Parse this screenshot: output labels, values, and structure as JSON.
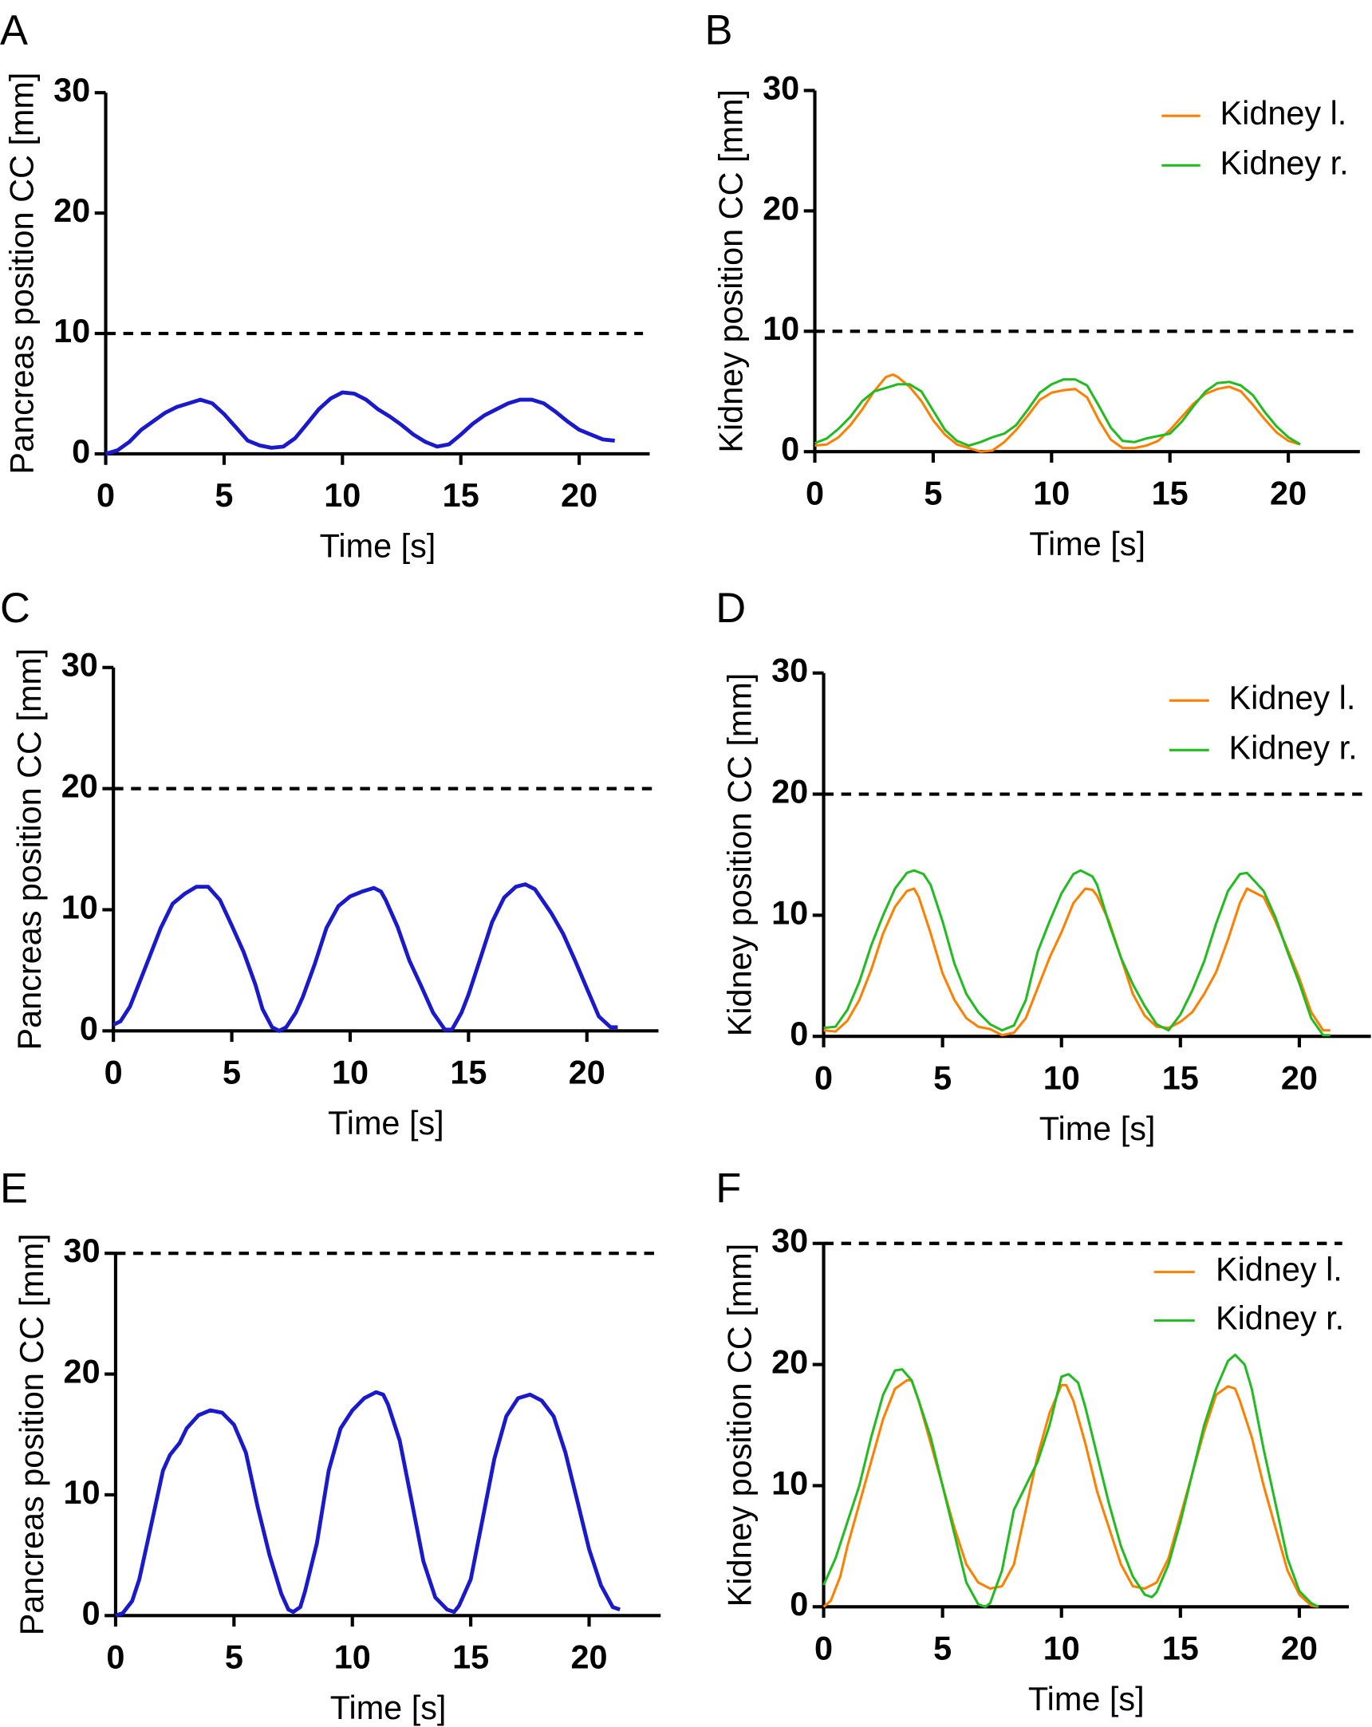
{
  "colors": {
    "pancreas": "#1a1acc",
    "kidney_l": "#ff8000",
    "kidney_r": "#22bb22",
    "threshold": "#000000"
  },
  "chart_data": [
    {
      "panel": "A",
      "type": "line",
      "xlabel": "Time [s]",
      "ylabel": "Pancreas position CC [mm]",
      "xlim": [
        0,
        23
      ],
      "ylim": [
        0,
        30
      ],
      "xticks": [
        "0",
        "5",
        "10",
        "15",
        "20"
      ],
      "yticks": [
        "0",
        "10",
        "20",
        "30"
      ],
      "threshold": 10,
      "legend": null,
      "series": [
        {
          "color": "pancreas",
          "x": [
            0,
            0.5,
            1,
            1.5,
            2,
            2.5,
            3,
            3.5,
            4,
            4.5,
            5,
            5.5,
            6,
            6.5,
            7,
            7.5,
            8,
            8.5,
            9,
            9.5,
            10,
            10.5,
            11,
            11.5,
            12,
            12.5,
            13,
            13.5,
            14,
            14.5,
            15,
            15.5,
            16,
            16.5,
            17,
            17.5,
            18,
            18.5,
            19,
            19.5,
            20,
            20.5,
            21,
            21.5
          ],
          "y": [
            0,
            0.3,
            1,
            2,
            2.7,
            3.4,
            3.9,
            4.2,
            4.5,
            4.2,
            3.3,
            2.2,
            1.1,
            0.7,
            0.5,
            0.6,
            1.3,
            2.5,
            3.7,
            4.6,
            5.1,
            5,
            4.5,
            3.7,
            3.1,
            2.4,
            1.6,
            1,
            0.6,
            0.8,
            1.6,
            2.5,
            3.2,
            3.7,
            4.2,
            4.5,
            4.5,
            4.2,
            3.5,
            2.7,
            2,
            1.6,
            1.2,
            1.1
          ]
        }
      ]
    },
    {
      "panel": "B",
      "type": "line",
      "xlabel": "Time [s]",
      "ylabel": "Kidney position CC [mm]",
      "xlim": [
        0,
        23
      ],
      "ylim": [
        0,
        30
      ],
      "xticks": [
        "0",
        "5",
        "10",
        "15",
        "20"
      ],
      "yticks": [
        "0",
        "10",
        "20",
        "30"
      ],
      "threshold": 10,
      "legend": "top-right",
      "series": [
        {
          "name": "Kidney l.",
          "color": "kidney_l",
          "x": [
            0,
            0.5,
            1,
            1.5,
            2,
            2.5,
            3,
            3.3,
            3.5,
            4,
            4.5,
            5,
            5.5,
            6,
            6.5,
            7,
            7.5,
            8,
            8.5,
            9,
            9.5,
            10,
            10.5,
            11,
            11.5,
            12,
            12.5,
            13,
            13.5,
            14,
            14.5,
            15,
            15.5,
            16,
            16.5,
            17,
            17.5,
            18,
            18.5,
            19,
            19.5,
            20,
            20.5
          ],
          "y": [
            0.5,
            0.6,
            1.2,
            2.2,
            3.5,
            5,
            6.2,
            6.4,
            6.2,
            5.4,
            4.2,
            2.6,
            1.4,
            0.6,
            0.3,
            0,
            0.1,
            0.8,
            1.8,
            3,
            4.3,
            4.9,
            5.1,
            5.2,
            4.5,
            2.6,
            1,
            0.3,
            0.3,
            0.5,
            0.9,
            1.8,
            2.9,
            4,
            4.8,
            5.2,
            5.4,
            5,
            3.9,
            2.7,
            1.6,
            0.9,
            0.6
          ]
        },
        {
          "name": "Kidney r.",
          "color": "kidney_r",
          "x": [
            0,
            0.5,
            1,
            1.5,
            2,
            2.5,
            3,
            3.5,
            4,
            4.5,
            5,
            5.5,
            6,
            6.5,
            7,
            7.5,
            8,
            8.5,
            9,
            9.5,
            10,
            10.5,
            11,
            11.5,
            12,
            12.5,
            13,
            13.5,
            14,
            14.5,
            15,
            15.5,
            16,
            16.5,
            17,
            17.5,
            18,
            18.5,
            19,
            19.5,
            20,
            20.5
          ],
          "y": [
            0.7,
            1.1,
            1.9,
            2.9,
            4.2,
            5,
            5.3,
            5.6,
            5.6,
            5,
            3.4,
            1.8,
            0.9,
            0.5,
            0.8,
            1.2,
            1.5,
            2.2,
            3.5,
            4.9,
            5.6,
            6,
            6,
            5.5,
            3.8,
            2,
            0.9,
            0.8,
            1.1,
            1.3,
            1.5,
            2.5,
            3.8,
            5,
            5.7,
            5.8,
            5.5,
            4.7,
            3.3,
            2.1,
            1.2,
            0.6
          ]
        }
      ]
    },
    {
      "panel": "C",
      "type": "line",
      "xlabel": "Time [s]",
      "ylabel": "Pancreas position CC [mm]",
      "xlim": [
        0,
        23
      ],
      "ylim": [
        0,
        30
      ],
      "xticks": [
        "0",
        "5",
        "10",
        "15",
        "20"
      ],
      "yticks": [
        "0",
        "10",
        "20",
        "30"
      ],
      "threshold": 20,
      "legend": null,
      "series": [
        {
          "color": "pancreas",
          "x": [
            0,
            0.3,
            0.7,
            1,
            1.5,
            2,
            2.5,
            3,
            3.5,
            4,
            4.5,
            5,
            5.5,
            6,
            6.3,
            6.7,
            7,
            7.3,
            7.7,
            8,
            8.5,
            9,
            9.5,
            10,
            10.5,
            11,
            11.3,
            11.5,
            12,
            12.5,
            13,
            13.5,
            14,
            14.3,
            14.7,
            15,
            15.5,
            16,
            16.5,
            17,
            17.4,
            17.8,
            18.5,
            19,
            19.5,
            20,
            20.5,
            21,
            21.3
          ],
          "y": [
            0.5,
            0.8,
            2,
            3.5,
            6,
            8.5,
            10.5,
            11.3,
            11.9,
            11.9,
            10.8,
            8.7,
            6.5,
            3.8,
            1.8,
            0.3,
            0,
            0.3,
            1.5,
            2.8,
            5.5,
            8.5,
            10.3,
            11.1,
            11.5,
            11.8,
            11.5,
            10.8,
            8.6,
            5.8,
            3.7,
            1.5,
            0.1,
            0.1,
            1.5,
            3,
            6,
            9,
            11,
            11.9,
            12.1,
            11.7,
            9.7,
            8,
            5.8,
            3.5,
            1.2,
            0.3,
            0.3
          ]
        }
      ]
    },
    {
      "panel": "D",
      "type": "line",
      "xlabel": "Time [s]",
      "ylabel": "Kidney position CC [mm]",
      "xlim": [
        0,
        23
      ],
      "ylim": [
        0,
        30
      ],
      "xticks": [
        "0",
        "5",
        "10",
        "15",
        "20"
      ],
      "yticks": [
        "0",
        "10",
        "20",
        "30"
      ],
      "threshold": 20,
      "legend": "top-right",
      "series": [
        {
          "name": "Kidney l.",
          "color": "kidney_l",
          "x": [
            0,
            0.5,
            1,
            1.5,
            2,
            2.5,
            3,
            3.5,
            3.8,
            4,
            4.5,
            5,
            5.5,
            6,
            6.5,
            7,
            7.5,
            8,
            8.5,
            9,
            9.5,
            10,
            10.5,
            11,
            11.3,
            11.5,
            12,
            12.5,
            13,
            13.5,
            14,
            14.5,
            15,
            15.5,
            16,
            16.5,
            17,
            17.5,
            17.8,
            18.5,
            19,
            19.5,
            20,
            20.5,
            21,
            21.3
          ],
          "y": [
            0.5,
            0.4,
            1.3,
            3,
            5.5,
            8.5,
            10.7,
            12,
            12.2,
            11.5,
            8.5,
            5.2,
            3,
            1.5,
            0.8,
            0.6,
            0.1,
            0.3,
            1.5,
            4,
            6.5,
            8.6,
            11,
            12.2,
            12.1,
            11.6,
            9.5,
            6.5,
            3.5,
            1.7,
            0.8,
            0.7,
            1.2,
            2,
            3.5,
            5.3,
            8,
            11,
            12.2,
            11.5,
            9.5,
            7.2,
            4.8,
            2,
            0.5,
            0.5
          ]
        },
        {
          "name": "Kidney r.",
          "color": "kidney_r",
          "x": [
            0,
            0.5,
            1,
            1.5,
            2,
            2.5,
            3,
            3.5,
            3.8,
            4.2,
            4.5,
            5,
            5.5,
            6,
            6.5,
            7,
            7.5,
            8,
            8.5,
            9,
            9.5,
            10,
            10.5,
            10.8,
            11.3,
            11.5,
            12,
            12.5,
            13,
            13.5,
            14,
            14.5,
            15,
            15.5,
            16,
            16.5,
            17,
            17.5,
            17.8,
            18.5,
            19,
            19.5,
            20,
            20.5,
            21,
            21.3
          ],
          "y": [
            0.7,
            0.8,
            2.2,
            4.5,
            7.5,
            10,
            12.2,
            13.5,
            13.7,
            13.4,
            12.5,
            9.5,
            6,
            3.5,
            2,
            1,
            0.5,
            0.9,
            3,
            7,
            9.5,
            11.8,
            13.4,
            13.7,
            13.2,
            12.5,
            9.3,
            6.5,
            4.3,
            2.5,
            1,
            0.5,
            1.8,
            3.8,
            6.2,
            9.3,
            12,
            13.4,
            13.5,
            12,
            9.8,
            7,
            4.4,
            1.5,
            0.1,
            0.1
          ]
        }
      ]
    },
    {
      "panel": "E",
      "type": "line",
      "xlabel": "Time [s]",
      "ylabel": "Pancreas position CC [mm]",
      "xlim": [
        0,
        23
      ],
      "ylim": [
        0,
        30
      ],
      "xticks": [
        "0",
        "5",
        "10",
        "15",
        "20"
      ],
      "yticks": [
        "0",
        "10",
        "20",
        "30"
      ],
      "threshold": 30,
      "legend": null,
      "series": [
        {
          "color": "pancreas",
          "x": [
            0,
            0.3,
            0.7,
            1,
            1.5,
            2,
            2.3,
            2.7,
            3,
            3.5,
            4,
            4.5,
            5,
            5.5,
            6,
            6.5,
            7,
            7.3,
            7.5,
            7.8,
            8,
            8.5,
            9,
            9.5,
            10,
            10.5,
            11,
            11.3,
            11.5,
            12,
            12.5,
            13,
            13.5,
            14,
            14.3,
            14.5,
            15,
            15.5,
            16,
            16.5,
            17,
            17.5,
            18,
            18.5,
            19,
            19.5,
            20,
            20.5,
            21,
            21.3
          ],
          "y": [
            0,
            0.2,
            1.2,
            3,
            7.5,
            12,
            13.3,
            14.3,
            15.5,
            16.6,
            17,
            16.8,
            15.8,
            13.5,
            9,
            5,
            1.8,
            0.5,
            0.3,
            0.7,
            2,
            6,
            12,
            15.5,
            17,
            18,
            18.5,
            18.3,
            17.5,
            14.5,
            9.5,
            4.5,
            1.5,
            0.5,
            0.3,
            0.8,
            3,
            8,
            13,
            16.5,
            18,
            18.3,
            17.8,
            16.5,
            13.5,
            9.5,
            5.5,
            2.5,
            0.7,
            0.5
          ]
        }
      ]
    },
    {
      "panel": "F",
      "type": "line",
      "xlabel": "Time [s]",
      "ylabel": "Kidney position CC [mm]",
      "xlim": [
        0,
        23
      ],
      "ylim": [
        0,
        30
      ],
      "xticks": [
        "0",
        "5",
        "10",
        "15",
        "20"
      ],
      "yticks": [
        "0",
        "10",
        "20",
        "30"
      ],
      "threshold": 30,
      "legend": "top-right",
      "series": [
        {
          "name": "Kidney l.",
          "color": "kidney_l",
          "x": [
            0,
            0.3,
            0.7,
            1,
            1.5,
            2,
            2.5,
            3,
            3.5,
            3.7,
            4,
            4.5,
            5,
            5.5,
            6,
            6.5,
            7,
            7.5,
            8,
            8.5,
            9,
            9.5,
            10,
            10.2,
            10.5,
            11,
            11.5,
            12,
            12.5,
            13,
            13.5,
            14,
            14.5,
            15,
            15.5,
            16,
            16.5,
            17,
            17.3,
            17.5,
            18,
            18.5,
            19,
            19.5,
            20,
            20.5,
            20.8
          ],
          "y": [
            0,
            0.5,
            2.5,
            5,
            8.5,
            12,
            15.5,
            18,
            18.7,
            18.7,
            17,
            13.5,
            10,
            6.5,
            3.5,
            2,
            1.5,
            1.7,
            3.5,
            8,
            12.5,
            16,
            18.3,
            18.3,
            17,
            13.5,
            9.5,
            6.5,
            3.5,
            1.7,
            1.5,
            2,
            4,
            7.5,
            11,
            14.5,
            17.5,
            18.2,
            18,
            17,
            14,
            10,
            6.5,
            3,
            1,
            0.1,
            0
          ]
        },
        {
          "name": "Kidney r.",
          "color": "kidney_r",
          "x": [
            0,
            0.5,
            1,
            1.5,
            2,
            2.5,
            3,
            3.3,
            3.7,
            4,
            4.5,
            5,
            5.5,
            6,
            6.5,
            6.8,
            7,
            7.5,
            8,
            8.5,
            9,
            9.5,
            10,
            10.3,
            10.7,
            11,
            11.5,
            12,
            12.5,
            13,
            13.5,
            13.8,
            14,
            14.5,
            15,
            15.5,
            16,
            16.5,
            17,
            17.3,
            17.7,
            18,
            18.5,
            19,
            19.5,
            20,
            20.5,
            20.8
          ],
          "y": [
            1.8,
            4,
            7,
            10,
            14,
            17.5,
            19.5,
            19.6,
            18.7,
            17,
            14,
            10,
            6,
            2,
            0.2,
            0,
            0.3,
            3,
            8,
            10,
            12,
            15,
            19,
            19.2,
            18.5,
            16.5,
            12.5,
            8.5,
            5,
            2.5,
            1,
            0.8,
            1.2,
            3.5,
            7,
            11,
            15,
            18,
            20.3,
            20.8,
            20,
            18,
            13,
            8.5,
            4,
            1.3,
            0.3,
            0
          ]
        }
      ]
    }
  ]
}
